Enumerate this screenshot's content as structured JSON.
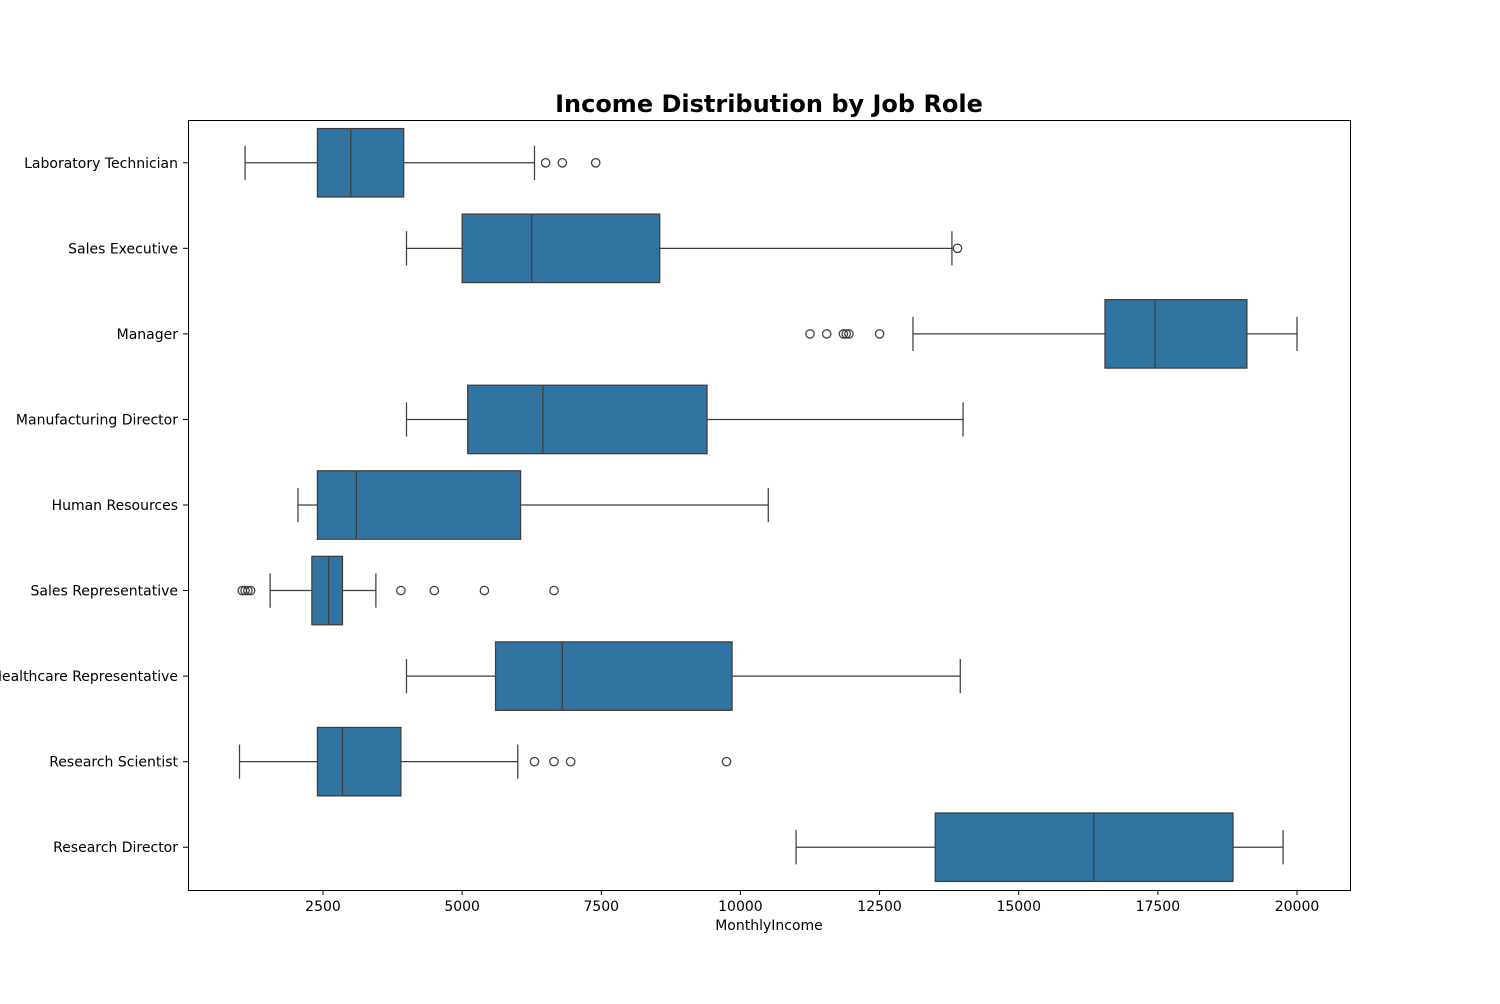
{
  "chart_data": {
    "type": "boxplot",
    "orientation": "horizontal",
    "title": "Income Distribution by Job Role",
    "xlabel": "MonthlyIncome",
    "ylabel": "",
    "xlim": [
      0,
      21000
    ],
    "xticks": [
      2500,
      5000,
      7500,
      10000,
      12500,
      15000,
      17500,
      20000
    ],
    "grid": false,
    "box_color": "#3274a1",
    "line_color": "#3d3d3d",
    "categories": [
      "Laboratory Technician",
      "Sales Executive",
      "Manager",
      "Manufacturing Director",
      "Human Resources",
      "Sales Representative",
      "Healthcare Representative",
      "Research Scientist",
      "Research Director"
    ],
    "boxes": [
      {
        "label": "Laboratory Technician",
        "whisker_low": 1100,
        "q1": 2400,
        "median": 3000,
        "q3": 3950,
        "whisker_high": 6300,
        "outliers": [
          6500,
          6800,
          7400
        ]
      },
      {
        "label": "Sales Executive",
        "whisker_low": 4000,
        "q1": 5000,
        "median": 6250,
        "q3": 8550,
        "whisker_high": 13800,
        "outliers": [
          13900
        ]
      },
      {
        "label": "Manager",
        "whisker_low": 13100,
        "q1": 16550,
        "median": 17450,
        "q3": 19100,
        "whisker_high": 20000,
        "outliers": [
          11250,
          11550,
          11850,
          11900,
          11950,
          12500
        ]
      },
      {
        "label": "Manufacturing Director",
        "whisker_low": 4000,
        "q1": 5100,
        "median": 6450,
        "q3": 9400,
        "whisker_high": 14000,
        "outliers": []
      },
      {
        "label": "Human Resources",
        "whisker_low": 2050,
        "q1": 2400,
        "median": 3100,
        "q3": 6050,
        "whisker_high": 10500,
        "outliers": []
      },
      {
        "label": "Sales Representative",
        "whisker_low": 1550,
        "q1": 2300,
        "median": 2600,
        "q3": 2850,
        "whisker_high": 3450,
        "outliers": [
          1050,
          1100,
          1150,
          1200,
          3900,
          4500,
          5400,
          6650
        ]
      },
      {
        "label": "Healthcare Representative",
        "whisker_low": 4000,
        "q1": 5600,
        "median": 6800,
        "q3": 9850,
        "whisker_high": 13950,
        "outliers": []
      },
      {
        "label": "Research Scientist",
        "whisker_low": 1000,
        "q1": 2400,
        "median": 2850,
        "q3": 3900,
        "whisker_high": 6000,
        "outliers": [
          6300,
          6650,
          6950,
          9750
        ]
      },
      {
        "label": "Research Director",
        "whisker_low": 11000,
        "q1": 13500,
        "median": 16350,
        "q3": 18850,
        "whisker_high": 19750,
        "outliers": []
      }
    ]
  }
}
